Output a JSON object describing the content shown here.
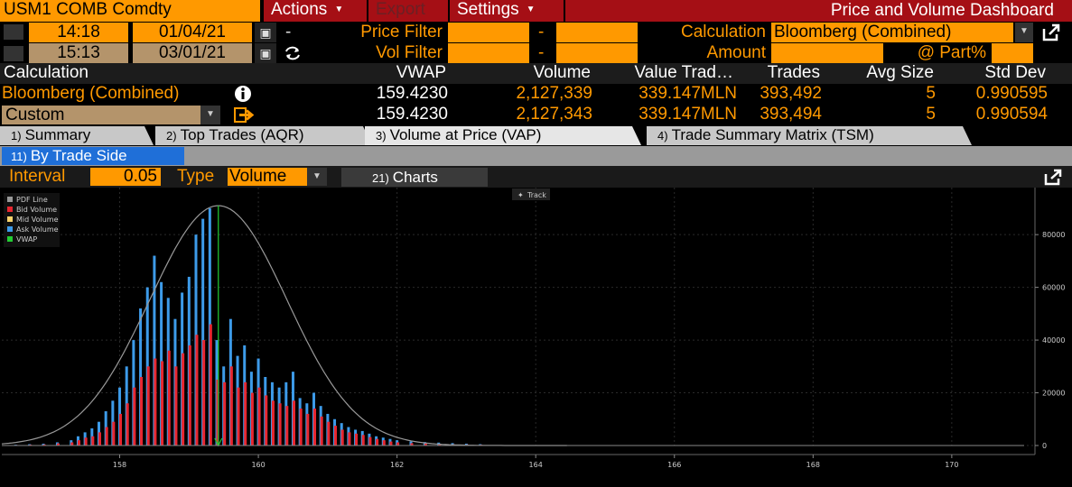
{
  "toolbar": {
    "security": "USM1 COMB Comdty",
    "actions_label": "Actions",
    "export_label": "Export",
    "settings_label": "Settings",
    "title": "Price and Volume Dashboard"
  },
  "filters": {
    "start_time": "14:18",
    "start_date": "01/04/21",
    "end_time": "15:13",
    "end_date": "03/01/21",
    "dash": "-",
    "price_filter_label": "Price Filter",
    "vol_filter_label": "Vol Filter",
    "calculation_label": "Calculation",
    "calculation_value": "Bloomberg (Combined)",
    "amount_label": "Amount",
    "part_label": "@ Part%"
  },
  "table": {
    "headers": [
      "Calculation",
      "VWAP",
      "Volume",
      "Value Trad…",
      "Trades",
      "Avg Size",
      "Std Dev"
    ],
    "rows": [
      {
        "calc": "Bloomberg (Combined)",
        "vwap": "159.4230",
        "volume": "2,127,339",
        "value": "339.147MLN",
        "trades": "393,492",
        "avg": "5",
        "std": "0.990595"
      },
      {
        "calc": "Custom",
        "vwap": "159.4230",
        "volume": "2,127,343",
        "value": "339.147MLN",
        "trades": "393,494",
        "avg": "5",
        "std": "0.990594"
      }
    ]
  },
  "tabs": [
    {
      "num": "1)",
      "label": "Summary"
    },
    {
      "num": "2)",
      "label": "Top Trades (AQR)"
    },
    {
      "num": "3)",
      "label": "Volume at Price (VAP)"
    },
    {
      "num": "4)",
      "label": "Trade Summary Matrix (TSM)"
    }
  ],
  "subtab": {
    "num": "11)",
    "label": "By Trade Side"
  },
  "controls": {
    "interval_label": "Interval",
    "interval_value": "0.05",
    "type_label": "Type",
    "type_value": "Volume",
    "charts_num": "21)",
    "charts_label": "Charts",
    "track_label": "Track"
  },
  "colors": {
    "accent": "#ff9900",
    "bid": "#e8262f",
    "ask": "#3d9be9",
    "vwap": "#22cc33",
    "pdf": "#999999",
    "mid": "#f7d26b"
  },
  "chart_data": {
    "type": "bar",
    "legend": [
      "PDF Line",
      "Bid Volume",
      "Mid Volume",
      "Ask Volume",
      "VWAP"
    ],
    "legend_placement": "top-left",
    "x_ticks": [
      158,
      160,
      162,
      164,
      166,
      168,
      170
    ],
    "y_ticks": [
      0,
      20000,
      40000,
      60000,
      80000
    ],
    "y_tick_labels": [
      "0",
      "20000",
      "40000",
      "60000",
      "80000"
    ],
    "xlim": [
      156.3,
      171.2
    ],
    "ylim": [
      0,
      91000
    ],
    "vwap": 159.423,
    "pdf": {
      "mean": 159.423,
      "std": 0.990595,
      "peak": 91000
    },
    "series": [
      {
        "name": "Bid Volume",
        "x": [
          156.5,
          156.7,
          156.9,
          157.1,
          157.3,
          157.4,
          157.5,
          157.6,
          157.7,
          157.8,
          157.9,
          158.0,
          158.1,
          158.2,
          158.3,
          158.4,
          158.5,
          158.6,
          158.7,
          158.8,
          158.9,
          159.0,
          159.1,
          159.2,
          159.3,
          159.4,
          159.5,
          159.6,
          159.7,
          159.8,
          159.9,
          160.0,
          160.1,
          160.2,
          160.3,
          160.4,
          160.5,
          160.6,
          160.7,
          160.8,
          160.9,
          161.0,
          161.1,
          161.2,
          161.3,
          161.4,
          161.5,
          161.6,
          161.7,
          161.8,
          161.9,
          162.0,
          162.2,
          162.4,
          162.6,
          162.8,
          163.0,
          163.2
        ],
        "values": [
          200,
          300,
          400,
          800,
          1200,
          2000,
          3000,
          3500,
          5000,
          7000,
          9000,
          12000,
          16000,
          22000,
          26000,
          30000,
          33000,
          32000,
          36000,
          30000,
          35000,
          38000,
          42000,
          40000,
          46000,
          25000,
          24000,
          30000,
          22000,
          24000,
          20000,
          22000,
          19000,
          17000,
          16000,
          15000,
          17000,
          14000,
          12000,
          14000,
          11000,
          9000,
          7500,
          6000,
          5000,
          4500,
          4000,
          3200,
          2500,
          2000,
          1500,
          1200,
          900,
          700,
          600,
          500,
          400,
          300
        ]
      },
      {
        "name": "Ask Volume",
        "x": [
          156.5,
          156.7,
          156.9,
          157.1,
          157.3,
          157.4,
          157.5,
          157.6,
          157.7,
          157.8,
          157.9,
          158.0,
          158.1,
          158.2,
          158.3,
          158.4,
          158.5,
          158.6,
          158.7,
          158.8,
          158.9,
          159.0,
          159.1,
          159.2,
          159.3,
          159.4,
          159.5,
          159.6,
          159.7,
          159.8,
          159.9,
          160.0,
          160.1,
          160.2,
          160.3,
          160.4,
          160.5,
          160.6,
          160.7,
          160.8,
          160.9,
          161.0,
          161.1,
          161.2,
          161.3,
          161.4,
          161.5,
          161.6,
          161.7,
          161.8,
          161.9,
          162.0,
          162.2,
          162.4,
          162.6,
          162.8,
          163.0,
          163.2
        ],
        "values": [
          300,
          500,
          700,
          1200,
          2000,
          3500,
          5000,
          6500,
          9000,
          13000,
          17000,
          22000,
          30000,
          40000,
          52000,
          60000,
          72000,
          62000,
          56000,
          48000,
          58000,
          64000,
          80000,
          86000,
          90000,
          40000,
          30000,
          48000,
          34000,
          38000,
          28000,
          33000,
          26000,
          24000,
          22000,
          24000,
          28000,
          18000,
          16000,
          20000,
          15000,
          12000,
          10000,
          8500,
          7000,
          6000,
          5500,
          4500,
          3500,
          3000,
          2500,
          2000,
          1600,
          1300,
          1100,
          900,
          700,
          500
        ]
      }
    ]
  }
}
